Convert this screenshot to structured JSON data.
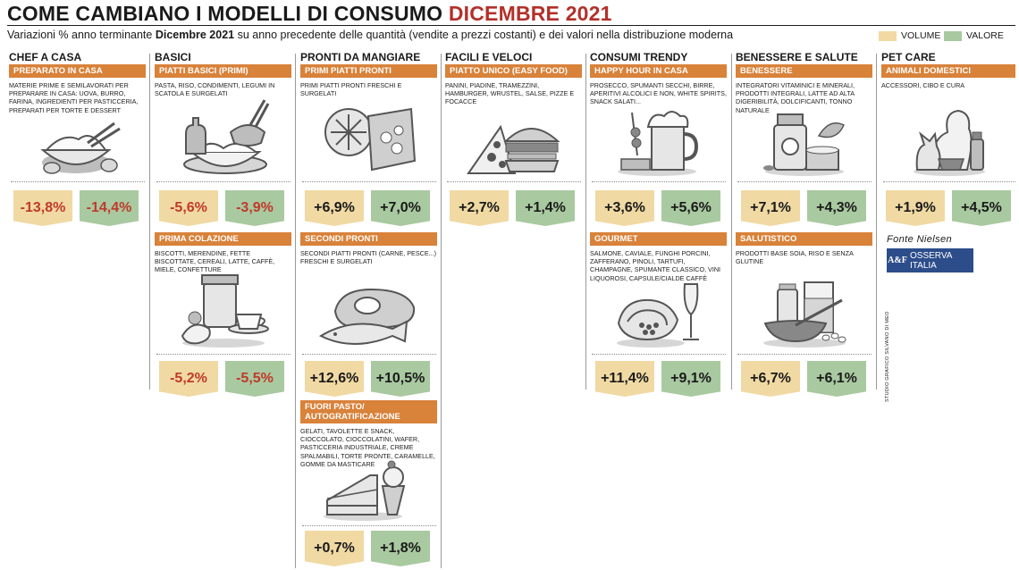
{
  "header": {
    "title_main": "COME CAMBIANO I MODELLI DI CONSUMO ",
    "title_accent": "DICEMBRE 2021",
    "subtitle_pre": "Variazioni % anno terminante ",
    "subtitle_bold": "Dicembre 2021",
    "subtitle_post": " su anno precedente delle quantità (vendite a prezzi costanti) e dei valori nella distribuzione moderna"
  },
  "legend": {
    "volume": "VOLUME",
    "valore": "VALORE",
    "volume_color": "#f0d9a3",
    "valore_color": "#a9c9a0"
  },
  "columns": {
    "chef": {
      "title": "CHEF A CASA"
    },
    "basici": {
      "title": "BASICI"
    },
    "pronti": {
      "title": "PRONTI DA MANGIARE"
    },
    "facili": {
      "title": "FACILI E VELOCI"
    },
    "trendy": {
      "title": "CONSUMI TRENDY"
    },
    "benessere": {
      "title": "BENESSERE E SALUTE"
    },
    "pet": {
      "title": "PET CARE"
    }
  },
  "segments": {
    "preparato": {
      "label": "PREPARATO IN CASA",
      "desc": "MATERIE PRIME E SEMILAVORATI PER PREPARARE IN CASA: UOVA, BURRO, FARINA, INGREDIENTI PER PASTICCERIA, PREPARATI PER TORTE E DESSERT",
      "icon": "dough-bowl-icon",
      "volume": "-13,8%",
      "valore": "-14,4%"
    },
    "piatti_basici": {
      "label": "PIATTI BASICI (PRIMI)",
      "desc": "PASTA, RISO, CONDIMENTI, LEGUMI IN SCATOLA E SURGELATI",
      "icon": "pasta-plate-icon",
      "volume": "-5,6%",
      "valore": "-3,9%"
    },
    "prima_colazione": {
      "label": "PRIMA COLAZIONE",
      "desc": "BISCOTTI, MERENDINE, FETTE BISCOTTATE, CEREALI, LATTE, CAFFÈ, MIELE, CONFETTURE",
      "icon": "breakfast-icon",
      "volume": "-5,2%",
      "valore": "-5,5%"
    },
    "primi_pronti": {
      "label": "PRIMI PIATTI PRONTI",
      "desc": "PRIMI PIATTI PRONTI FRESCHI E SURGELATI",
      "icon": "frozen-meal-icon",
      "volume": "+6,9%",
      "valore": "+7,0%"
    },
    "secondi_pronti": {
      "label": "SECONDI PRONTI",
      "desc": "SECONDI PIATTI PRONTI (CARNE, PESCE...) FRESCHI  E SURGELATI",
      "icon": "meat-fish-icon",
      "volume": "+12,6%",
      "valore": "+10,5%"
    },
    "fuori_pasto": {
      "label": "FUORI PASTO/ AUTOGRATIFICAZIONE",
      "desc": "GELATI, TAVOLETTE E SNACK, CIOCCOLATO, CIOCCOLATINI, WAFER, PASTICCERIA INDUSTRIALE, CREME SPALMABILI, TORTE PRONTE, CARAMELLE, GOMME DA MASTICARE",
      "icon": "cake-slice-icon",
      "volume": "+0,7%",
      "valore": "+1,8%"
    },
    "piatto_unico": {
      "label": "PIATTO UNICO (EASY FOOD)",
      "desc": "PANINI, PIADINE, TRAMEZZINI, HAMBURGER, WRUSTEL, SALSE, PIZZE E FOCACCE",
      "icon": "pizza-burger-icon",
      "volume": "+2,7%",
      "valore": "+1,4%"
    },
    "happy_hour": {
      "label": "HAPPY HOUR IN CASA",
      "desc": "PROSECCO, SPUMANTI SECCHI, BIRRE, APERITIVI ALCOLICI E NON, WHITE SPIRITS, SNACK SALATI...",
      "icon": "beer-mug-icon",
      "volume": "+3,6%",
      "valore": "+5,6%"
    },
    "gourmet": {
      "label": "GOURMET",
      "desc": "SALMONE, CAVIALE, FUNGHI PORCINI, ZAFFERANO, PINOLI, TARTUFI, CHAMPAGNE, SPUMANTE CLASSICO, VINI LIQUOROSI, CAPSULE/CIALDE CAFFÈ",
      "icon": "salmon-champagne-icon",
      "volume": "+11,4%",
      "valore": "+9,1%"
    },
    "benessere": {
      "label": "BENESSERE",
      "desc": "INTEGRATORI VITAMINICI E MINERALI, PRODOTTI INTEGRALI, LATTE AD ALTA DIGERIBILITÀ, DOLCIFICANTI, TONNO NATURALE",
      "icon": "supplements-icon",
      "volume": "+7,1%",
      "valore": "+4,3%"
    },
    "salutistico": {
      "label": "SALUTISTICO",
      "desc": "PRODOTTI BASE SOIA, RISO E SENZA GLUTINE",
      "icon": "soy-milk-icon",
      "volume": "+6,7%",
      "valore": "+6,1%"
    },
    "animali": {
      "label": "ANIMALI DOMESTICI",
      "desc": "ACCESSORI, CIBO E CURA",
      "icon": "dog-cat-icon",
      "volume": "+1,9%",
      "valore": "+4,5%"
    }
  },
  "source": {
    "label": "Fonte Nielsen",
    "logo_mark": "A&F",
    "logo_text": "OSSERVA ITALIA",
    "credit": "STUDIO GRAFICO SILVANO DI MEO"
  }
}
